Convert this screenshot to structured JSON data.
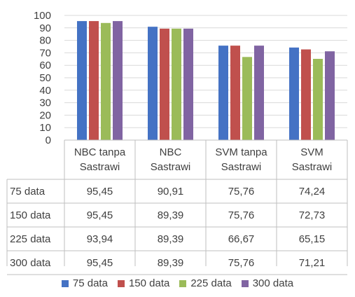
{
  "chart_data": {
    "type": "bar",
    "categories": [
      "NBC tanpa\nSastrawi",
      "NBC\nSastrawi",
      "SVM tanpa\nSastrawi",
      "SVM\nSastrawi"
    ],
    "series": [
      {
        "name": "75 data",
        "color": "#4472C4",
        "values": [
          95.45,
          90.91,
          75.76,
          74.24
        ],
        "labels": [
          "95,45",
          "90,91",
          "75,76",
          "74,24"
        ]
      },
      {
        "name": "150 data",
        "color": "#C0504D",
        "values": [
          95.45,
          89.39,
          75.76,
          72.73
        ],
        "labels": [
          "95,45",
          "89,39",
          "75,76",
          "72,73"
        ]
      },
      {
        "name": "225 data",
        "color": "#9BBB59",
        "values": [
          93.94,
          89.39,
          66.67,
          65.15
        ],
        "labels": [
          "93,94",
          "89,39",
          "66,67",
          "65,15"
        ]
      },
      {
        "name": "300 data",
        "color": "#8064A2",
        "values": [
          95.45,
          89.39,
          75.76,
          71.21
        ],
        "labels": [
          "95,45",
          "89,39",
          "75,76",
          "71,21"
        ]
      }
    ],
    "ylim": [
      0,
      100
    ],
    "yticks": [
      0,
      10,
      20,
      30,
      40,
      50,
      60,
      70,
      80,
      90,
      100
    ],
    "grid": true,
    "legend": "bottom",
    "data_table": true
  }
}
